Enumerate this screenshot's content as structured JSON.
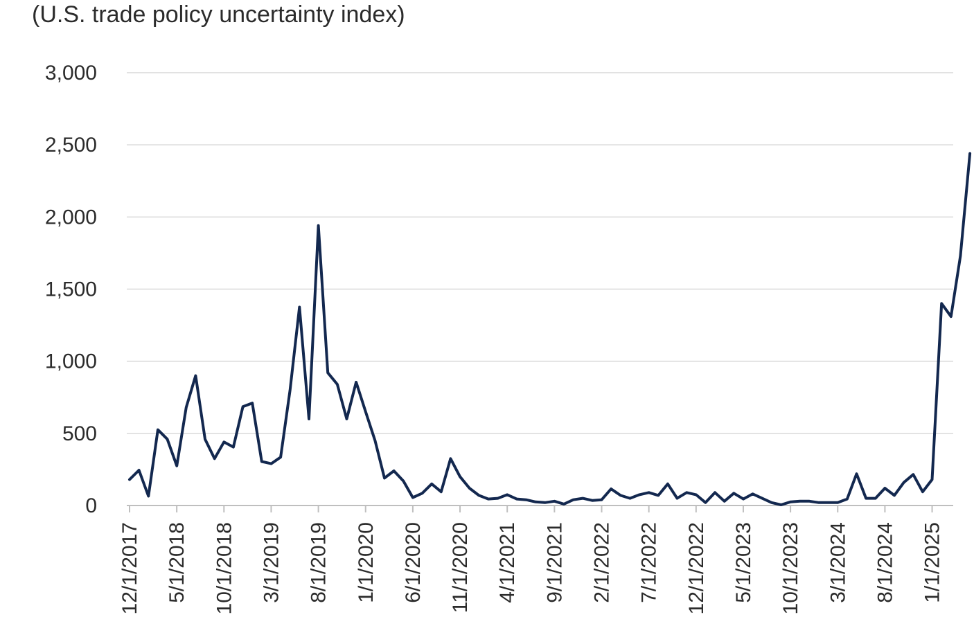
{
  "chart_data": {
    "type": "line",
    "title": "(U.S. trade policy uncertainty index)",
    "xlabel": "",
    "ylabel": "",
    "ylim": [
      0,
      3000
    ],
    "y_ticks": [
      0,
      500,
      1000,
      1500,
      2000,
      2500,
      3000
    ],
    "y_tick_labels": [
      "0",
      "500",
      "1,000",
      "1,500",
      "2,000",
      "2,500",
      "3,000"
    ],
    "x_tick_labels": [
      "12/1/2017",
      "5/1/2018",
      "10/1/2018",
      "3/1/2019",
      "8/1/2019",
      "1/1/2020",
      "6/1/2020",
      "11/1/2020",
      "4/1/2021",
      "9/1/2021",
      "2/1/2022",
      "7/1/2022",
      "12/1/2022",
      "5/1/2023",
      "10/1/2023",
      "3/1/2024",
      "8/1/2024",
      "1/1/2025"
    ],
    "grid": true,
    "line_color": "#13284f",
    "series": [
      {
        "name": "",
        "values": [
          180,
          245,
          65,
          525,
          460,
          275,
          680,
          900,
          460,
          325,
          440,
          405,
          685,
          710,
          305,
          290,
          335,
          800,
          1375,
          600,
          1940,
          920,
          840,
          600,
          855,
          650,
          450,
          190,
          240,
          170,
          55,
          85,
          150,
          95,
          325,
          200,
          120,
          70,
          45,
          50,
          75,
          45,
          40,
          25,
          20,
          30,
          10,
          40,
          50,
          35,
          40,
          115,
          70,
          50,
          75,
          90,
          70,
          150,
          50,
          90,
          75,
          20,
          90,
          30,
          85,
          45,
          80,
          50,
          20,
          5,
          25,
          30,
          30,
          20,
          20,
          20,
          45,
          220,
          50,
          50,
          120,
          70,
          160,
          215,
          95,
          180,
          1400,
          1310,
          1730,
          2440
        ]
      }
    ]
  }
}
